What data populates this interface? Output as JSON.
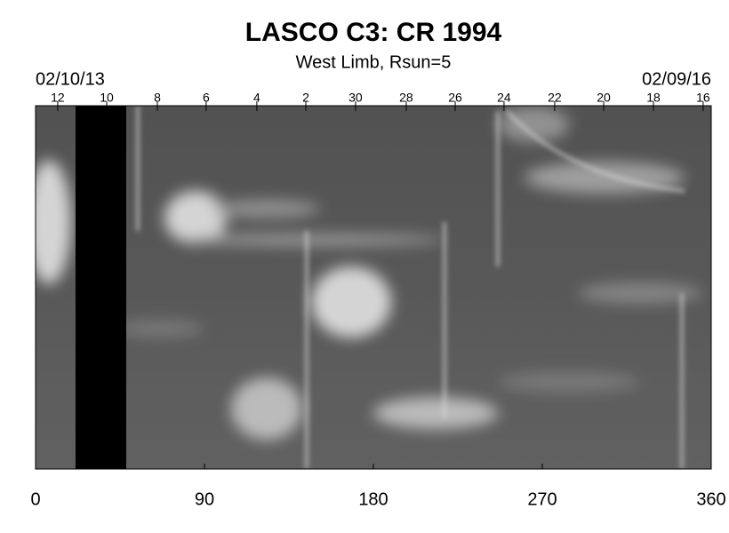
{
  "chart_data": {
    "type": "synoptic-map",
    "title": "LASCO C3: CR 1994",
    "subtitle": "West Limb, Rsun=5",
    "start_date": "02/10/13",
    "end_date": "02/09/16",
    "xlim": [
      0,
      360
    ],
    "xticks": [
      0,
      90,
      180,
      270,
      360
    ],
    "x2ticks": [
      {
        "value": 11.8,
        "label": "12"
      },
      {
        "value": 37.9,
        "label": "10"
      },
      {
        "value": 64.9,
        "label": "8"
      },
      {
        "value": 90.9,
        "label": "6"
      },
      {
        "value": 117.9,
        "label": "4"
      },
      {
        "value": 144,
        "label": "2"
      },
      {
        "value": 170.5,
        "label": "30"
      },
      {
        "value": 197.5,
        "label": "28"
      },
      {
        "value": 223.6,
        "label": "26"
      },
      {
        "value": 249.6,
        "label": "24"
      },
      {
        "value": 276.6,
        "label": "22"
      },
      {
        "value": 302.7,
        "label": "20"
      },
      {
        "value": 329.2,
        "label": "18"
      },
      {
        "value": 355.7,
        "label": "16"
      }
    ],
    "data_gap": [
      21.3,
      48.3
    ]
  }
}
